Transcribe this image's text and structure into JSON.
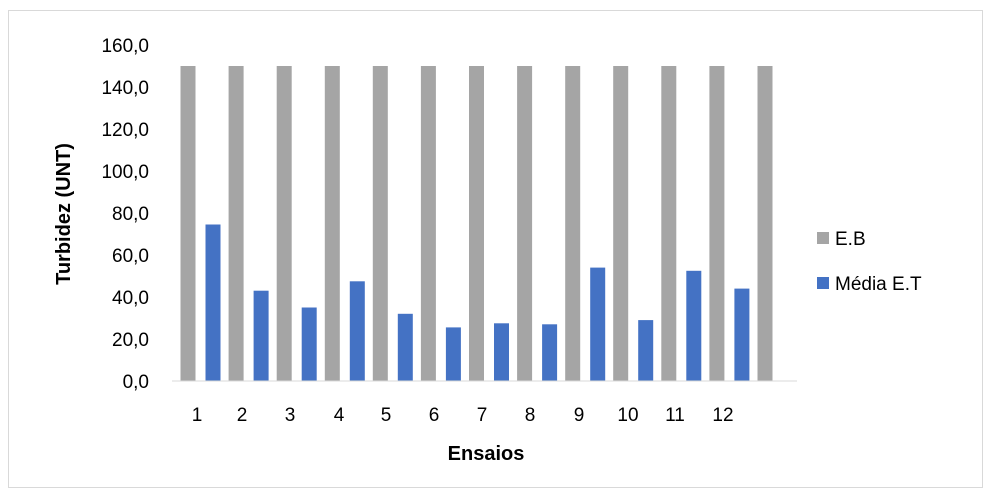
{
  "chart_data": {
    "type": "bar",
    "title": "",
    "xlabel": "Ensaios",
    "ylabel": "Turbidez (UNT)",
    "categories": [
      "1",
      "2",
      "3",
      "4",
      "5",
      "6",
      "7",
      "8",
      "9",
      "10",
      "11",
      "12",
      ""
    ],
    "ylim": [
      0,
      160
    ],
    "yticks": [
      "0,0",
      "20,0",
      "40,0",
      "60,0",
      "80,0",
      "100,0",
      "120,0",
      "140,0",
      "160,0"
    ],
    "grid": false,
    "legend_position": "right",
    "series": [
      {
        "name": "E.B",
        "color": "#a5a5a5",
        "values": [
          150,
          150,
          150,
          150,
          150,
          150,
          150,
          150,
          150,
          150,
          150,
          150,
          150
        ]
      },
      {
        "name": "Média E.T",
        "color": "#4472c4",
        "values": [
          74.5,
          43,
          35,
          47.5,
          32,
          25.5,
          27.5,
          27,
          54,
          29,
          52.5,
          44,
          null
        ]
      }
    ]
  }
}
